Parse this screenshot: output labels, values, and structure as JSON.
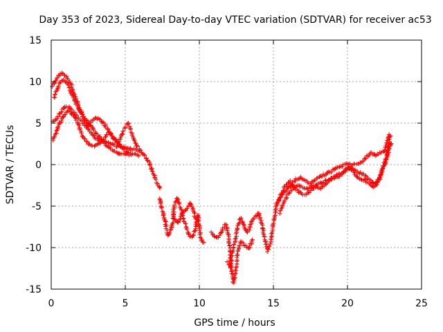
{
  "chart_data": {
    "type": "scatter",
    "title": "Day 353 of 2023, Sidereal Day-to-day VTEC variation (SDTVAR) for receiver ac53",
    "xlabel": "GPS time / hours",
    "ylabel": "SDTVAR / TECUs",
    "xlim": [
      0,
      25
    ],
    "ylim": [
      -15,
      15
    ],
    "x_ticks": [
      0,
      5,
      10,
      15,
      20,
      25
    ],
    "y_ticks": [
      -15,
      -10,
      -5,
      0,
      5,
      10,
      15
    ],
    "grid": true,
    "marker": "+",
    "color": "#ff0000",
    "series": [
      {
        "name": "SDTVAR",
        "trace_a": [
          [
            0.1,
            9.5
          ],
          [
            0.4,
            10.5
          ],
          [
            0.7,
            11.1
          ],
          [
            1.0,
            10.6
          ],
          [
            1.3,
            9.8
          ],
          [
            1.6,
            8.2
          ],
          [
            1.9,
            6.8
          ],
          [
            2.2,
            5.6
          ],
          [
            2.5,
            4.4
          ],
          [
            2.8,
            3.7
          ],
          [
            3.0,
            3.2
          ],
          [
            3.3,
            2.9
          ],
          [
            3.6,
            2.8
          ],
          [
            3.9,
            2.6
          ],
          [
            4.2,
            2.4
          ],
          [
            4.5,
            2.2
          ],
          [
            4.8,
            2.1
          ],
          [
            5.1,
            2.0
          ],
          [
            5.4,
            1.8
          ],
          [
            5.7,
            1.9
          ],
          [
            6.0,
            1.6
          ],
          [
            6.3,
            1.1
          ],
          [
            6.6,
            0.3
          ],
          [
            6.8,
            -0.6
          ],
          [
            7.0,
            -1.6
          ],
          [
            7.2,
            -2.4
          ],
          [
            7.4,
            -3.0
          ]
        ],
        "trace_b": [
          [
            0.1,
            5.2
          ],
          [
            0.3,
            5.5
          ],
          [
            0.6,
            6.2
          ],
          [
            0.9,
            7.0
          ],
          [
            1.2,
            6.9
          ],
          [
            1.5,
            6.3
          ],
          [
            1.8,
            5.7
          ],
          [
            2.1,
            5.0
          ],
          [
            2.4,
            4.5
          ],
          [
            2.7,
            5.2
          ],
          [
            3.0,
            5.6
          ],
          [
            3.3,
            5.4
          ],
          [
            3.6,
            4.8
          ],
          [
            3.9,
            4.0
          ],
          [
            4.2,
            3.3
          ],
          [
            4.5,
            2.6
          ],
          [
            4.8,
            3.6
          ],
          [
            5.0,
            4.6
          ],
          [
            5.2,
            5.0
          ],
          [
            5.4,
            4.0
          ],
          [
            5.6,
            2.8
          ],
          [
            5.8,
            2.2
          ],
          [
            6.1,
            1.7
          ]
        ],
        "trace_c": [
          [
            0.1,
            3.0
          ],
          [
            0.3,
            3.7
          ],
          [
            0.5,
            4.8
          ],
          [
            0.7,
            5.3
          ],
          [
            0.9,
            6.0
          ],
          [
            1.2,
            6.5
          ],
          [
            1.5,
            5.9
          ],
          [
            1.8,
            5.0
          ],
          [
            2.1,
            3.4
          ],
          [
            2.4,
            2.7
          ],
          [
            2.7,
            2.3
          ],
          [
            3.0,
            2.3
          ],
          [
            3.3,
            2.6
          ],
          [
            3.6,
            3.3
          ],
          [
            3.9,
            3.8
          ],
          [
            4.2,
            3.2
          ],
          [
            4.5,
            2.6
          ],
          [
            4.8,
            2.0
          ],
          [
            5.1,
            1.6
          ],
          [
            5.4,
            1.3
          ],
          [
            5.7,
            1.2
          ],
          [
            6.0,
            1.0
          ]
        ],
        "trace_d": [
          [
            0.2,
            8.0
          ],
          [
            0.4,
            9.2
          ],
          [
            0.6,
            9.8
          ],
          [
            0.8,
            10.2
          ],
          [
            1.0,
            10.0
          ],
          [
            1.2,
            9.4
          ],
          [
            1.4,
            8.4
          ],
          [
            1.7,
            7.3
          ],
          [
            2.0,
            6.3
          ],
          [
            2.3,
            5.5
          ],
          [
            2.6,
            4.9
          ],
          [
            2.9,
            4.1
          ],
          [
            3.2,
            3.4
          ],
          [
            3.5,
            2.8
          ],
          [
            3.8,
            2.2
          ],
          [
            4.1,
            1.8
          ],
          [
            4.4,
            1.5
          ],
          [
            4.7,
            1.3
          ],
          [
            5.0,
            1.3
          ],
          [
            5.3,
            1.1
          ]
        ],
        "trace_e": [
          [
            7.3,
            -4.0
          ],
          [
            7.5,
            -5.5
          ],
          [
            7.7,
            -7.0
          ],
          [
            7.9,
            -8.6
          ],
          [
            8.0,
            -8.2
          ],
          [
            8.2,
            -7.0
          ],
          [
            8.3,
            -5.0
          ],
          [
            8.5,
            -4.0
          ],
          [
            8.7,
            -5.0
          ],
          [
            8.9,
            -6.4
          ],
          [
            9.1,
            -7.4
          ],
          [
            9.3,
            -8.4
          ],
          [
            9.5,
            -8.8
          ],
          [
            9.7,
            -8.0
          ],
          [
            9.9,
            -6.0
          ],
          [
            10.0,
            -7.5
          ],
          [
            10.1,
            -9.0
          ],
          [
            10.3,
            -9.6
          ]
        ],
        "trace_f": [
          [
            8.2,
            -5.8
          ],
          [
            8.4,
            -6.8
          ],
          [
            8.6,
            -7.0
          ],
          [
            8.8,
            -6.0
          ],
          [
            9.0,
            -5.6
          ],
          [
            9.2,
            -5.2
          ],
          [
            9.4,
            -4.6
          ],
          [
            9.6,
            -5.6
          ],
          [
            9.8,
            -6.8
          ]
        ],
        "trace_g": [
          [
            10.8,
            -8.2
          ],
          [
            11.0,
            -8.5
          ],
          [
            11.2,
            -8.8
          ],
          [
            11.4,
            -8.4
          ],
          [
            11.6,
            -7.6
          ],
          [
            11.8,
            -7.2
          ],
          [
            12.0,
            -9.0
          ],
          [
            12.1,
            -11.5
          ],
          [
            12.2,
            -12.8
          ],
          [
            12.3,
            -14.2
          ],
          [
            12.45,
            -13.0
          ],
          [
            12.6,
            -10.5
          ],
          [
            12.8,
            -9.2
          ],
          [
            13.0,
            -9.6
          ],
          [
            13.2,
            -9.9
          ],
          [
            13.4,
            -10.0
          ],
          [
            13.6,
            -8.8
          ]
        ],
        "trace_h": [
          [
            11.9,
            -11.8
          ],
          [
            12.1,
            -12.4
          ],
          [
            12.2,
            -10.8
          ],
          [
            12.4,
            -9.4
          ],
          [
            12.6,
            -7.4
          ],
          [
            12.8,
            -6.4
          ],
          [
            13.0,
            -7.4
          ],
          [
            13.2,
            -8.2
          ],
          [
            13.4,
            -7.6
          ],
          [
            13.6,
            -6.6
          ],
          [
            13.8,
            -6.3
          ],
          [
            14.0,
            -5.8
          ],
          [
            14.2,
            -7.0
          ],
          [
            14.4,
            -8.8
          ],
          [
            14.6,
            -10.4
          ],
          [
            14.8,
            -9.4
          ],
          [
            15.0,
            -7.0
          ],
          [
            15.2,
            -5.0
          ],
          [
            15.4,
            -4.0
          ],
          [
            15.6,
            -3.3
          ]
        ],
        "trace_i": [
          [
            15.4,
            -5.8
          ],
          [
            15.7,
            -4.5
          ],
          [
            16.0,
            -3.6
          ],
          [
            16.3,
            -2.9
          ],
          [
            16.6,
            -2.4
          ],
          [
            16.9,
            -2.6
          ],
          [
            17.2,
            -2.9
          ],
          [
            17.5,
            -2.7
          ],
          [
            17.8,
            -2.5
          ],
          [
            18.1,
            -2.3
          ],
          [
            18.4,
            -2.1
          ],
          [
            18.7,
            -1.8
          ],
          [
            19.0,
            -1.5
          ],
          [
            19.3,
            -1.3
          ],
          [
            19.6,
            -1.0
          ],
          [
            19.9,
            -0.6
          ],
          [
            20.2,
            -0.3
          ],
          [
            20.5,
            -0.6
          ],
          [
            20.8,
            -1.0
          ],
          [
            21.1,
            -1.2
          ],
          [
            21.4,
            -1.7
          ],
          [
            21.7,
            -2.1
          ],
          [
            22.0,
            -2.4
          ],
          [
            22.2,
            -1.5
          ],
          [
            22.4,
            -0.4
          ],
          [
            22.6,
            0.8
          ],
          [
            22.8,
            2.5
          ],
          [
            22.9,
            3.7
          ]
        ],
        "trace_j": [
          [
            15.6,
            -3.6
          ],
          [
            15.9,
            -3.0
          ],
          [
            16.2,
            -2.4
          ],
          [
            16.5,
            -1.8
          ],
          [
            16.8,
            -1.6
          ],
          [
            17.1,
            -1.9
          ],
          [
            17.4,
            -2.3
          ],
          [
            17.7,
            -2.1
          ],
          [
            18.0,
            -1.6
          ],
          [
            18.3,
            -1.3
          ],
          [
            18.6,
            -1.1
          ],
          [
            18.9,
            -0.8
          ],
          [
            19.2,
            -0.5
          ],
          [
            19.5,
            -0.3
          ],
          [
            19.8,
            0.0
          ],
          [
            20.1,
            0.1
          ],
          [
            20.4,
            0.0
          ],
          [
            20.7,
            0.1
          ],
          [
            21.0,
            0.4
          ],
          [
            21.3,
            1.0
          ],
          [
            21.6,
            1.4
          ],
          [
            21.9,
            1.1
          ],
          [
            22.2,
            1.4
          ],
          [
            22.5,
            1.8
          ],
          [
            22.7,
            2.8
          ],
          [
            22.85,
            3.7
          ]
        ],
        "trace_k": [
          [
            15.2,
            -4.8
          ],
          [
            15.5,
            -3.8
          ],
          [
            15.8,
            -2.6
          ],
          [
            16.1,
            -2.0
          ],
          [
            16.4,
            -2.7
          ],
          [
            16.7,
            -3.3
          ],
          [
            17.0,
            -3.6
          ],
          [
            17.3,
            -3.5
          ],
          [
            17.6,
            -2.9
          ],
          [
            17.9,
            -2.7
          ],
          [
            18.2,
            -2.9
          ],
          [
            18.5,
            -2.4
          ],
          [
            18.8,
            -1.9
          ],
          [
            19.1,
            -1.6
          ],
          [
            19.4,
            -1.4
          ],
          [
            19.7,
            -1.0
          ],
          [
            20.0,
            -0.4
          ],
          [
            20.3,
            -0.7
          ],
          [
            20.6,
            -1.4
          ],
          [
            20.9,
            -1.7
          ],
          [
            21.2,
            -1.9
          ],
          [
            21.5,
            -2.3
          ],
          [
            21.8,
            -2.7
          ],
          [
            22.0,
            -2.0
          ],
          [
            22.3,
            -0.8
          ],
          [
            22.6,
            0.5
          ],
          [
            22.8,
            1.9
          ],
          [
            23.0,
            2.8
          ]
        ]
      }
    ]
  }
}
